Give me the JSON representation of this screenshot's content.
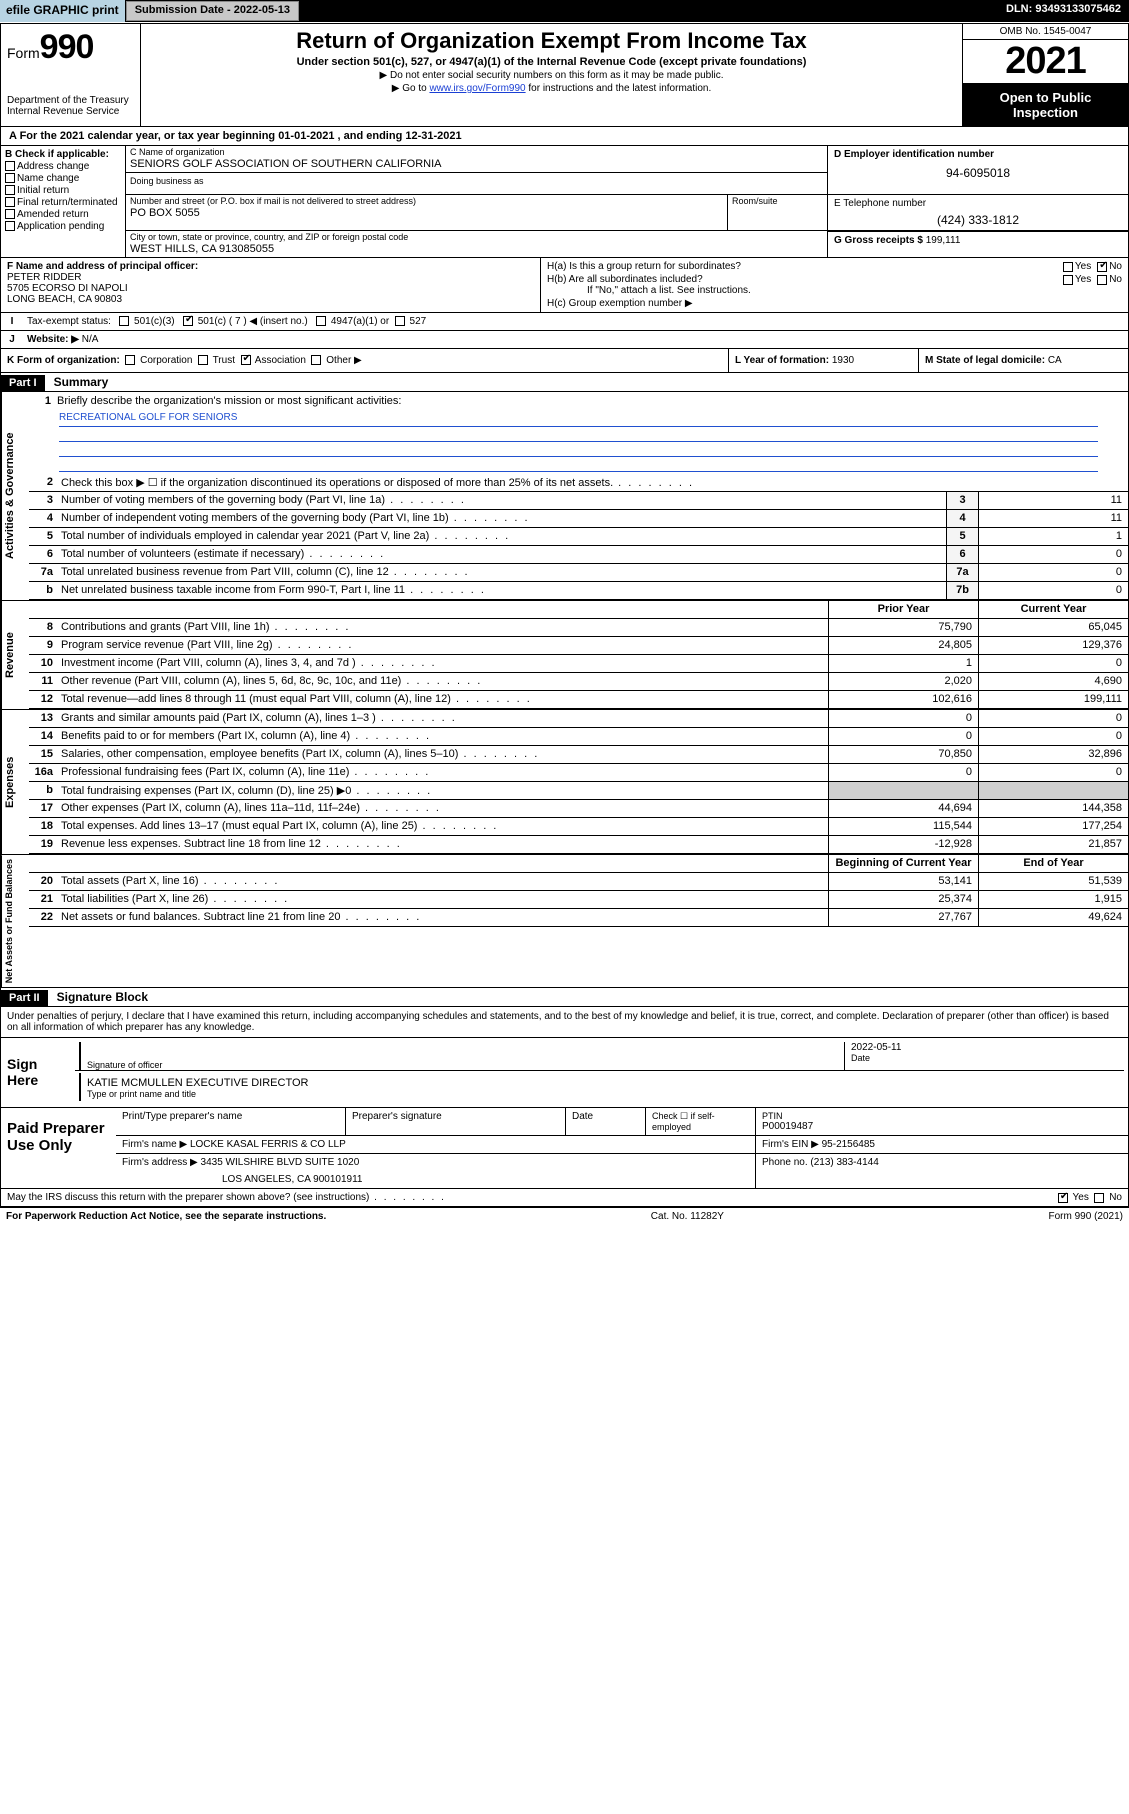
{
  "topbar": {
    "efile": "efile GRAPHIC print",
    "submission_label": "Submission Date - ",
    "submission_date": "2022-05-13",
    "dln_label": "DLN: ",
    "dln": "93493133075462"
  },
  "header": {
    "form_word": "Form",
    "form_num": "990",
    "dept": "Department of the Treasury",
    "irs": "Internal Revenue Service",
    "title": "Return of Organization Exempt From Income Tax",
    "sub": "Under section 501(c), 527, or 4947(a)(1) of the Internal Revenue Code (except private foundations)",
    "note1": "▶ Do not enter social security numbers on this form as it may be made public.",
    "note2_pre": "▶ Go to ",
    "note2_link": "www.irs.gov/Form990",
    "note2_post": " for instructions and the latest information.",
    "omb": "OMB No. 1545-0047",
    "year": "2021",
    "open": "Open to Public Inspection"
  },
  "lineA": "A For the 2021 calendar year, or tax year beginning 01-01-2021    , and ending 12-31-2021",
  "boxB": {
    "hdr": "B Check if applicable:",
    "opts": [
      "Address change",
      "Name change",
      "Initial return",
      "Final return/terminated",
      "Amended return",
      "Application pending"
    ]
  },
  "boxC": {
    "name_lbl": "C Name of organization",
    "name": "SENIORS GOLF ASSOCIATION OF SOUTHERN CALIFORNIA",
    "dba_lbl": "Doing business as",
    "addr_lbl": "Number and street (or P.O. box if mail is not delivered to street address)",
    "room_lbl": "Room/suite",
    "addr": "PO BOX 5055",
    "city_lbl": "City or town, state or province, country, and ZIP or foreign postal code",
    "city": "WEST HILLS, CA  913085055"
  },
  "boxD": {
    "lbl": "D Employer identification number",
    "val": "94-6095018"
  },
  "boxE": {
    "lbl": "E Telephone number",
    "val": "(424) 333-1812"
  },
  "boxG": {
    "lbl": "G Gross receipts $ ",
    "val": "199,111"
  },
  "boxF": {
    "lbl": "F Name and address of principal officer:",
    "name": "PETER RIDDER",
    "addr1": "5705 ECORSO DI NAPOLI",
    "addr2": "LONG BEACH, CA  90803"
  },
  "boxH": {
    "a": "H(a)  Is this a group return for subordinates?",
    "b": "H(b)  Are all subordinates included?",
    "b2": "If \"No,\" attach a list. See instructions.",
    "c": "H(c)  Group exemption number ▶",
    "yes": "Yes",
    "no": "No"
  },
  "rowI": {
    "lbl": "I",
    "txt": "Tax-exempt status:",
    "o1": "501(c)(3)",
    "o2": "501(c) ( 7 ) ◀ (insert no.)",
    "o3": "4947(a)(1) or",
    "o4": "527"
  },
  "rowJ": {
    "lbl": "J",
    "txt": "Website: ▶",
    "val": "N/A"
  },
  "rowK": {
    "txt": "K Form of organization:",
    "o1": "Corporation",
    "o2": "Trust",
    "o3": "Association",
    "o4": "Other ▶"
  },
  "rowL": {
    "txt": "L Year of formation: ",
    "val": "1930"
  },
  "rowM": {
    "txt": "M State of legal domicile: ",
    "val": "CA"
  },
  "part1": {
    "hdr": "Part I",
    "title": "Summary"
  },
  "mission": {
    "num": "1",
    "txt": "Briefly describe the organization's mission or most significant activities:",
    "val": "RECREATIONAL GOLF FOR SENIORS"
  },
  "gov_lines": [
    {
      "n": "2",
      "d": "Check this box ▶ ☐  if the organization discontinued its operations or disposed of more than 25% of its net assets.",
      "box": "",
      "v": ""
    },
    {
      "n": "3",
      "d": "Number of voting members of the governing body (Part VI, line 1a)",
      "box": "3",
      "v": "11"
    },
    {
      "n": "4",
      "d": "Number of independent voting members of the governing body (Part VI, line 1b)",
      "box": "4",
      "v": "11"
    },
    {
      "n": "5",
      "d": "Total number of individuals employed in calendar year 2021 (Part V, line 2a)",
      "box": "5",
      "v": "1"
    },
    {
      "n": "6",
      "d": "Total number of volunteers (estimate if necessary)",
      "box": "6",
      "v": "0"
    },
    {
      "n": "7a",
      "d": "Total unrelated business revenue from Part VIII, column (C), line 12",
      "box": "7a",
      "v": "0"
    },
    {
      "n": "b",
      "d": "Net unrelated business taxable income from Form 990-T, Part I, line 11",
      "box": "7b",
      "v": "0"
    }
  ],
  "rev_hdr": {
    "py": "Prior Year",
    "cy": "Current Year"
  },
  "rev_lines": [
    {
      "n": "8",
      "d": "Contributions and grants (Part VIII, line 1h)",
      "py": "75,790",
      "cy": "65,045"
    },
    {
      "n": "9",
      "d": "Program service revenue (Part VIII, line 2g)",
      "py": "24,805",
      "cy": "129,376"
    },
    {
      "n": "10",
      "d": "Investment income (Part VIII, column (A), lines 3, 4, and 7d )",
      "py": "1",
      "cy": "0"
    },
    {
      "n": "11",
      "d": "Other revenue (Part VIII, column (A), lines 5, 6d, 8c, 9c, 10c, and 11e)",
      "py": "2,020",
      "cy": "4,690"
    },
    {
      "n": "12",
      "d": "Total revenue—add lines 8 through 11 (must equal Part VIII, column (A), line 12)",
      "py": "102,616",
      "cy": "199,111"
    }
  ],
  "exp_lines": [
    {
      "n": "13",
      "d": "Grants and similar amounts paid (Part IX, column (A), lines 1–3 )",
      "py": "0",
      "cy": "0"
    },
    {
      "n": "14",
      "d": "Benefits paid to or for members (Part IX, column (A), line 4)",
      "py": "0",
      "cy": "0"
    },
    {
      "n": "15",
      "d": "Salaries, other compensation, employee benefits (Part IX, column (A), lines 5–10)",
      "py": "70,850",
      "cy": "32,896"
    },
    {
      "n": "16a",
      "d": "Professional fundraising fees (Part IX, column (A), line 11e)",
      "py": "0",
      "cy": "0"
    },
    {
      "n": "b",
      "d": "Total fundraising expenses (Part IX, column (D), line 25) ▶0",
      "py": "",
      "cy": "",
      "shaded": true
    },
    {
      "n": "17",
      "d": "Other expenses (Part IX, column (A), lines 11a–11d, 11f–24e)",
      "py": "44,694",
      "cy": "144,358"
    },
    {
      "n": "18",
      "d": "Total expenses. Add lines 13–17 (must equal Part IX, column (A), line 25)",
      "py": "115,544",
      "cy": "177,254"
    },
    {
      "n": "19",
      "d": "Revenue less expenses. Subtract line 18 from line 12",
      "py": "-12,928",
      "cy": "21,857"
    }
  ],
  "na_hdr": {
    "py": "Beginning of Current Year",
    "cy": "End of Year"
  },
  "na_lines": [
    {
      "n": "20",
      "d": "Total assets (Part X, line 16)",
      "py": "53,141",
      "cy": "51,539"
    },
    {
      "n": "21",
      "d": "Total liabilities (Part X, line 26)",
      "py": "25,374",
      "cy": "1,915"
    },
    {
      "n": "22",
      "d": "Net assets or fund balances. Subtract line 21 from line 20",
      "py": "27,767",
      "cy": "49,624"
    }
  ],
  "vtabs": {
    "gov": "Activities & Governance",
    "rev": "Revenue",
    "exp": "Expenses",
    "na": "Net Assets or Fund Balances"
  },
  "part2": {
    "hdr": "Part II",
    "title": "Signature Block"
  },
  "sig": {
    "intro": "Under penalties of perjury, I declare that I have examined this return, including accompanying schedules and statements, and to the best of my knowledge and belief, it is true, correct, and complete. Declaration of preparer (other than officer) is based on all information of which preparer has any knowledge.",
    "here": "Sign Here",
    "off_lbl": "Signature of officer",
    "date_lbl": "Date",
    "date": "2022-05-11",
    "name": "KATIE MCMULLEN  EXECUTIVE DIRECTOR",
    "name_lbl": "Type or print name and title"
  },
  "prep": {
    "title": "Paid Preparer Use Only",
    "h1": "Print/Type preparer's name",
    "h2": "Preparer's signature",
    "h3": "Date",
    "h4_pre": "Check ☐ if self-employed",
    "h5": "PTIN",
    "ptin": "P00019487",
    "firm_lbl": "Firm's name   ▶",
    "firm": "LOCKE KASAL FERRIS & CO LLP",
    "ein_lbl": "Firm's EIN ▶",
    "ein": "95-2156485",
    "addr_lbl": "Firm's address ▶",
    "addr1": "3435 WILSHIRE BLVD SUITE 1020",
    "addr2": "LOS ANGELES, CA  900101911",
    "phone_lbl": "Phone no. ",
    "phone": "(213) 383-4144"
  },
  "footer": {
    "q": "May the IRS discuss this return with the preparer shown above? (see instructions)",
    "yes": "Yes",
    "no": "No",
    "pra": "For Paperwork Reduction Act Notice, see the separate instructions.",
    "cat": "Cat. No. 11282Y",
    "form": "Form 990 (2021)"
  }
}
